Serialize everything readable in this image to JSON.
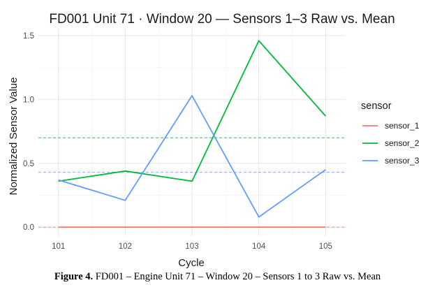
{
  "chart_data": {
    "type": "line",
    "title": "FD001 Unit 71 · Window 20 — Sensors 1–3 Raw vs. Mean",
    "xlabel": "Cycle",
    "ylabel": "Normalized Sensor Value",
    "x": [
      101,
      102,
      103,
      104,
      105
    ],
    "x_ticks": [
      "101",
      "102",
      "103",
      "104",
      "105"
    ],
    "y_ticks": [
      "0.0",
      "0.5",
      "1.0",
      "1.5"
    ],
    "xlim": [
      100.7,
      105.3
    ],
    "ylim": [
      -0.07,
      1.56
    ],
    "legend_title": "sensor",
    "legend_position": "right",
    "series": [
      {
        "name": "sensor_1",
        "color": "#f8766d",
        "values": [
          0.0,
          0.0,
          0.0,
          0.0,
          0.0
        ],
        "mean": 0.0
      },
      {
        "name": "sensor_2",
        "color": "#00ba38",
        "values": [
          0.36,
          0.44,
          0.36,
          1.46,
          0.87
        ],
        "mean": 0.7
      },
      {
        "name": "sensor_3",
        "color": "#619cff",
        "values": [
          0.37,
          0.21,
          1.03,
          0.08,
          0.45
        ],
        "mean": 0.43
      }
    ]
  },
  "caption": {
    "label": "Figure 4.",
    "text": "FD001 – Engine Unit 71 – Window 20 – Sensors 1 to 3 Raw vs. Mean"
  }
}
